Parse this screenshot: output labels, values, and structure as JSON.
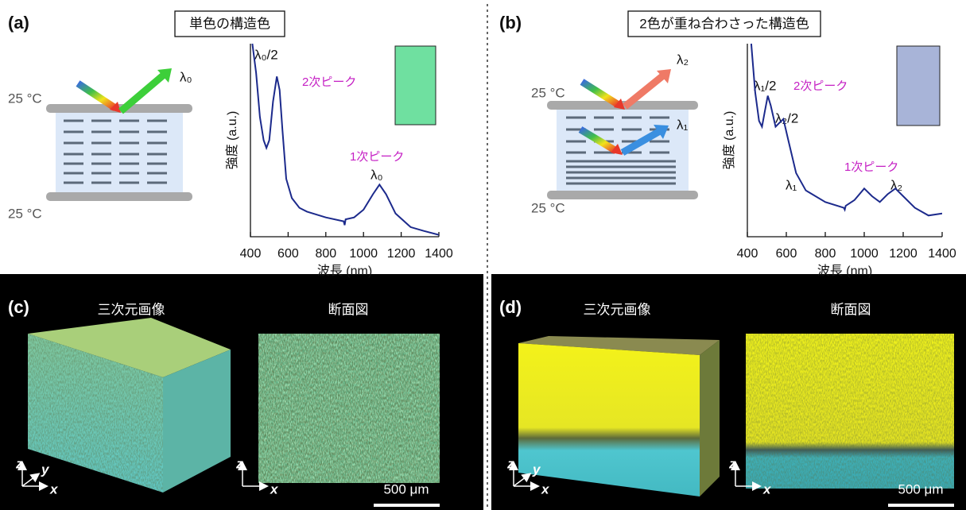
{
  "panels": [
    {
      "label": "(a)",
      "title": "単色の構造色",
      "temps": [
        "25 °C",
        "25 °C"
      ],
      "beams": [
        "λ₀"
      ]
    },
    {
      "label": "(b)",
      "title": "2色が重ね合わさった構造色",
      "temps": [
        "25 °C",
        "25 °C"
      ],
      "beams": [
        "λ₂",
        "λ₁"
      ]
    },
    {
      "label": "(c)",
      "views": [
        "三次元画像",
        "断面図"
      ],
      "axes": [
        "z",
        "y",
        "x",
        "z",
        "x"
      ],
      "scale": "500 μm"
    },
    {
      "label": "(d)",
      "views": [
        "三次元画像",
        "断面図"
      ],
      "axes": [
        "z",
        "y",
        "x",
        "z",
        "x"
      ],
      "scale": "500 μm"
    }
  ],
  "chart_data": [
    {
      "type": "line",
      "xlabel": "波長 (nm)",
      "ylabel": "強度 (a.u.)",
      "x": [
        410,
        430,
        450,
        470,
        485,
        500,
        520,
        540,
        555,
        570,
        590,
        620,
        660,
        700,
        800,
        895,
        900,
        905,
        950,
        1000,
        1050,
        1085,
        1120,
        1170,
        1250,
        1320,
        1400
      ],
      "series": [
        {
          "color": "#1c2a8c",
          "values": [
            1.0,
            0.85,
            0.62,
            0.5,
            0.46,
            0.5,
            0.7,
            0.83,
            0.76,
            0.55,
            0.3,
            0.2,
            0.15,
            0.13,
            0.1,
            0.08,
            0.06,
            0.09,
            0.1,
            0.14,
            0.22,
            0.27,
            0.22,
            0.12,
            0.05,
            0.03,
            0.01
          ]
        }
      ],
      "xlim": [
        400,
        1400
      ],
      "xticks": [
        400,
        600,
        800,
        1000,
        1200,
        1400
      ],
      "ylim": [
        0,
        1
      ],
      "annotations": [
        "λ₀/2",
        "2次ピーク",
        "1次ピーク",
        "λ₀"
      ]
    },
    {
      "type": "line",
      "xlabel": "波長 (nm)",
      "ylabel": "強度 (a.u.)",
      "x": [
        420,
        440,
        460,
        475,
        490,
        505,
        520,
        545,
        565,
        585,
        610,
        650,
        700,
        800,
        895,
        900,
        905,
        950,
        1000,
        1040,
        1080,
        1120,
        1160,
        1200,
        1260,
        1330,
        1400
      ],
      "series": [
        {
          "color": "#1c2a8c",
          "values": [
            1.0,
            0.75,
            0.6,
            0.57,
            0.65,
            0.73,
            0.68,
            0.57,
            0.59,
            0.61,
            0.5,
            0.33,
            0.24,
            0.18,
            0.15,
            0.14,
            0.16,
            0.19,
            0.25,
            0.21,
            0.18,
            0.22,
            0.25,
            0.21,
            0.15,
            0.11,
            0.12
          ]
        }
      ],
      "xlim": [
        400,
        1400
      ],
      "xticks": [
        400,
        600,
        800,
        1000,
        1200,
        1400
      ],
      "ylim": [
        0,
        1
      ],
      "annotations": [
        "λ₁/2",
        "2次ピーク",
        "λ₂/2",
        "1次ピーク",
        "λ₁",
        "λ₂"
      ]
    }
  ]
}
